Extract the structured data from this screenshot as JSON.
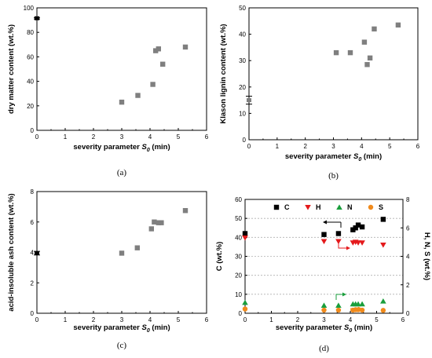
{
  "chart_data": [
    {
      "id": "a",
      "type": "scatter",
      "panel_label": "(a)",
      "xlabel": "severity parameter S0 (min)",
      "ylabel": "dry matter content (wt.%)",
      "xlim": [
        0,
        6
      ],
      "ylim": [
        0,
        100
      ],
      "xticks": [
        0,
        1,
        2,
        3,
        4,
        5,
        6
      ],
      "yticks": [
        0,
        20,
        40,
        60,
        80,
        100
      ],
      "series": [
        {
          "color": "#7f7f7f",
          "x": [
            3.0,
            3.57,
            4.1,
            4.2,
            4.3,
            4.45,
            5.25
          ],
          "y": [
            23,
            28.5,
            37.5,
            65,
            66.5,
            54,
            68
          ]
        }
      ],
      "reference": {
        "x": 0,
        "y": 91.5,
        "err": 0.6,
        "color": "#000000"
      }
    },
    {
      "id": "b",
      "type": "scatter",
      "panel_label": "(b)",
      "xlabel": "severity parameter S0 (min)",
      "ylabel": "Klason lignin content (wt.%)",
      "xlim": [
        0,
        6
      ],
      "ylim": [
        0,
        50
      ],
      "xticks": [
        0,
        1,
        2,
        3,
        4,
        5,
        6
      ],
      "yticks": [
        0,
        10,
        20,
        30,
        40,
        50
      ],
      "series": [
        {
          "color": "#7f7f7f",
          "x": [
            3.1,
            3.6,
            4.1,
            4.2,
            4.3,
            4.45,
            5.3
          ],
          "y": [
            33,
            33,
            37,
            28.5,
            31,
            42,
            43.5
          ]
        }
      ],
      "reference": {
        "x": 0,
        "y": 15,
        "err": 1.5,
        "color": "#7f7f7f"
      }
    },
    {
      "id": "c",
      "type": "scatter",
      "panel_label": "(c)",
      "xlabel": "severity parameter S0 (min)",
      "ylabel": "acid-insoluble ash content (wt.%)",
      "xlim": [
        0,
        6
      ],
      "ylim": [
        0,
        8
      ],
      "xticks": [
        0,
        1,
        2,
        3,
        4,
        5,
        6
      ],
      "yticks": [
        0,
        2,
        4,
        6,
        8
      ],
      "series": [
        {
          "color": "#7f7f7f",
          "x": [
            3.0,
            3.55,
            4.05,
            4.15,
            4.3,
            4.4,
            5.25
          ],
          "y": [
            3.95,
            4.3,
            5.55,
            6.0,
            5.95,
            5.95,
            6.75
          ]
        }
      ],
      "reference": {
        "x": 0,
        "y": 3.95,
        "err": 0.12,
        "color": "#000000"
      }
    },
    {
      "id": "d",
      "type": "scatter",
      "panel_label": "(d)",
      "xlabel": "severity parameter S0 (min)",
      "ylabel": "C (wt.%)",
      "ylabel_right": "H, N, S (wt.%)",
      "xlim": [
        0,
        6
      ],
      "ylim": [
        0,
        60
      ],
      "ylim_right": [
        0,
        8
      ],
      "xticks": [
        0,
        1,
        2,
        3,
        4,
        5,
        6
      ],
      "yticks": [
        0,
        10,
        20,
        30,
        40,
        50,
        60
      ],
      "yticks_right": [
        0,
        2,
        4,
        6,
        8
      ],
      "grid": true,
      "legend": "top",
      "series": [
        {
          "name": "C",
          "axis": "left",
          "marker": "square",
          "color": "#000000",
          "x": [
            0,
            3.0,
            3.55,
            4.1,
            4.2,
            4.3,
            4.45,
            5.25
          ],
          "y": [
            42,
            41.5,
            42,
            44,
            45,
            46.5,
            45.5,
            49.5
          ]
        },
        {
          "name": "H",
          "axis": "right",
          "marker": "triangle-down",
          "color": "#e41a1c",
          "x": [
            0,
            3.0,
            3.55,
            4.1,
            4.2,
            4.3,
            4.45,
            5.25
          ],
          "y": [
            5.3,
            5.05,
            5.05,
            4.95,
            5.0,
            4.95,
            4.95,
            4.8
          ]
        },
        {
          "name": "N",
          "axis": "right",
          "marker": "triangle-up",
          "color": "#1a9e3c",
          "x": [
            0,
            3.0,
            3.55,
            4.1,
            4.2,
            4.3,
            4.45,
            5.25
          ],
          "y": [
            0.75,
            0.55,
            0.55,
            0.65,
            0.65,
            0.65,
            0.65,
            0.85
          ]
        },
        {
          "name": "S",
          "axis": "right",
          "marker": "circle",
          "color": "#f08a1c",
          "x": [
            0,
            3.0,
            3.55,
            4.1,
            4.2,
            4.3,
            4.45,
            5.25
          ],
          "y": [
            0.3,
            0.22,
            0.22,
            0.22,
            0.25,
            0.25,
            0.22,
            0.2
          ]
        }
      ]
    }
  ]
}
